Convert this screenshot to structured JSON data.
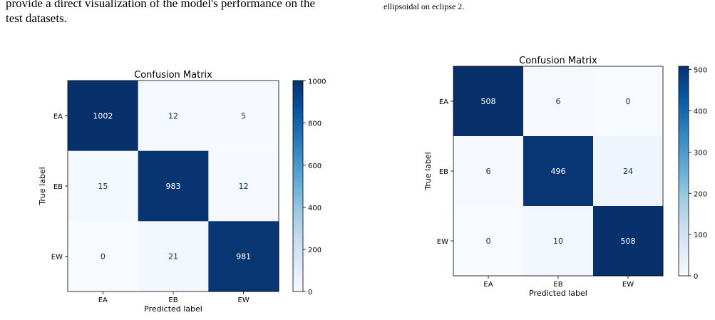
{
  "captions": {
    "left_line1": "provide a direct visualization of the model's performance on the",
    "left_line2": "test datasets.",
    "right_line1": "ellipsoidal on eclipse 2."
  },
  "chart_data": [
    {
      "type": "heatmap",
      "title": "Confusion Matrix",
      "xlabel": "Predicted label",
      "ylabel": "True label",
      "x_categories": [
        "EA",
        "EB",
        "EW"
      ],
      "y_categories": [
        "EA",
        "EB",
        "EW"
      ],
      "values": [
        [
          1002,
          12,
          5
        ],
        [
          15,
          983,
          12
        ],
        [
          0,
          21,
          981
        ]
      ],
      "colormap": "Blues",
      "colorbar_range": [
        0,
        1002
      ],
      "colorbar_ticks": [
        0,
        200,
        400,
        600,
        800,
        1000
      ],
      "colorbar_tick_labels": [
        "0",
        "200",
        "400",
        "600",
        "800",
        "1000"
      ]
    },
    {
      "type": "heatmap",
      "title": "Confusion Matrix",
      "xlabel": "Predicted label",
      "ylabel": "True label",
      "x_categories": [
        "EA",
        "EB",
        "EW"
      ],
      "y_categories": [
        "EA",
        "EB",
        "EW"
      ],
      "values": [
        [
          508,
          6,
          0
        ],
        [
          6,
          496,
          24
        ],
        [
          0,
          10,
          508
        ]
      ],
      "colormap": "Blues",
      "colorbar_range": [
        0,
        508
      ],
      "colorbar_ticks": [
        0,
        100,
        200,
        300,
        400,
        500
      ],
      "colorbar_tick_labels": [
        "0",
        "100",
        "200",
        "300",
        "400",
        "500"
      ]
    }
  ]
}
